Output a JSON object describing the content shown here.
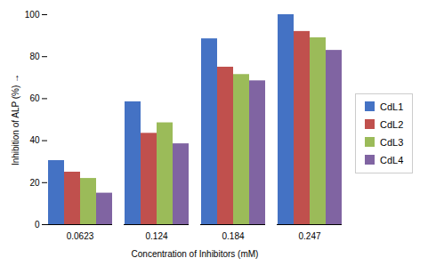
{
  "chart_data": {
    "type": "bar",
    "categories": [
      "0.0623",
      "0.124",
      "0.184",
      "0.247"
    ],
    "series": [
      {
        "name": "CdL1",
        "color": "#4472C4",
        "values": [
          30.5,
          58.5,
          88.5,
          100.0
        ]
      },
      {
        "name": "CdL2",
        "color": "#C0504D",
        "values": [
          25.0,
          43.5,
          75.0,
          92.0
        ]
      },
      {
        "name": "CdL3",
        "color": "#9BBB59",
        "values": [
          22.0,
          48.5,
          71.5,
          89.0
        ]
      },
      {
        "name": "CdL4",
        "color": "#8064A2",
        "values": [
          15.0,
          38.5,
          68.5,
          83.0
        ]
      }
    ],
    "xlabel": "Concentration of Inhibitors (mM)",
    "ylabel": "Inhibition of ALP (%)",
    "ylim": [
      0,
      100
    ],
    "yticks": [
      0,
      20,
      40,
      60,
      80,
      100
    ],
    "grid": false,
    "legend": "right"
  }
}
